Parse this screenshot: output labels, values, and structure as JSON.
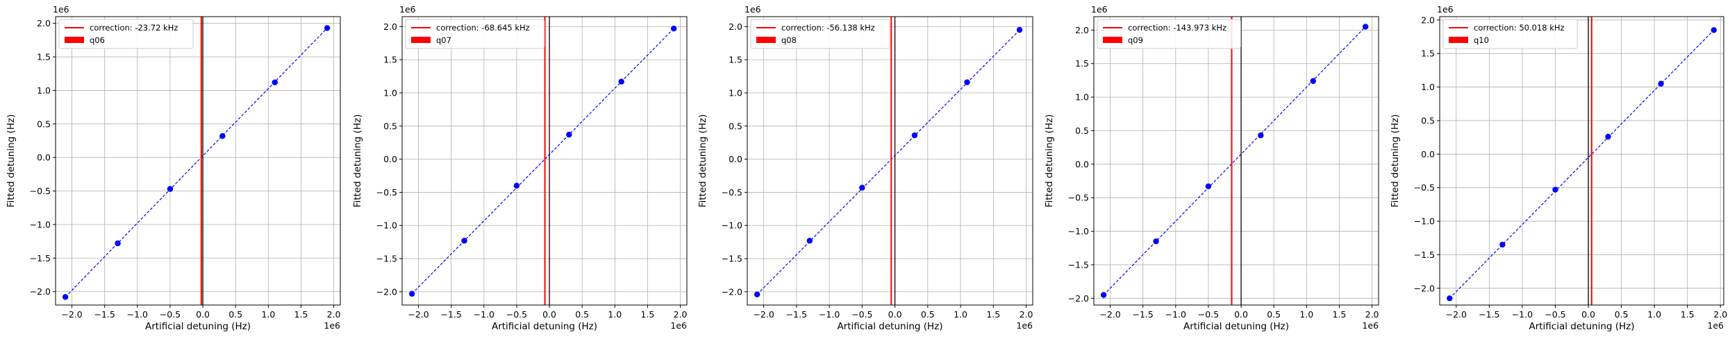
{
  "chart_data": [
    {
      "type": "scatter",
      "x_ticks": [
        "−2.0",
        "−1.5",
        "−1.0",
        "−0.5",
        "0.0",
        "0.5",
        "1.0",
        "1.5",
        "2.0"
      ],
      "y_ticks": [
        "−2.0",
        "−1.5",
        "−1.0",
        "−0.5",
        "0.0",
        "0.5",
        "1.0",
        "1.5",
        "2.0"
      ],
      "x_ticks_val": [
        -2.0,
        -1.5,
        -1.0,
        -0.5,
        0.0,
        0.5,
        1.0,
        1.5,
        2.0
      ],
      "y_ticks_val": [
        -2.0,
        -1.5,
        -1.0,
        -0.5,
        0.0,
        0.5,
        1.0,
        1.5,
        2.0
      ],
      "x_offset": "1e6",
      "y_offset": "1e6",
      "xlabel": "Artificial detuning (Hz)",
      "ylabel": "Fitted detuning (Hz)",
      "xlim": [
        -2.25,
        2.1
      ],
      "ylim": [
        -2.2,
        2.1
      ],
      "grid": true,
      "legend_loc": "upper-left",
      "series_name": "q06",
      "correction_label": "correction: -23.72 kHz",
      "correction_x": -0.02372,
      "zero_line_x": 0.0,
      "points_x": [
        -2.1,
        -1.3,
        -0.5,
        0.3,
        1.1,
        1.9
      ],
      "points_y": [
        -2.08,
        -1.28,
        -0.47,
        0.32,
        1.12,
        1.93
      ],
      "fit_y": [
        -2.08,
        1.93
      ],
      "colors": {
        "points": "#0000ff",
        "correction": "#ff0000",
        "zero": "#000000"
      }
    },
    {
      "type": "scatter",
      "x_ticks": [
        "−2.0",
        "−1.5",
        "−1.0",
        "−0.5",
        "0.0",
        "0.5",
        "1.0",
        "1.5",
        "2.0"
      ],
      "y_ticks": [
        "−2.0",
        "−1.5",
        "−1.0",
        "−0.5",
        "0.0",
        "0.5",
        "1.0",
        "1.5",
        "2.0"
      ],
      "x_ticks_val": [
        -2.0,
        -1.5,
        -1.0,
        -0.5,
        0.0,
        0.5,
        1.0,
        1.5,
        2.0
      ],
      "y_ticks_val": [
        -2.0,
        -1.5,
        -1.0,
        -0.5,
        0.0,
        0.5,
        1.0,
        1.5,
        2.0
      ],
      "x_offset": "1e6",
      "y_offset": "1e6",
      "xlabel": "Artificial detuning (Hz)",
      "ylabel": "Fitted detuning (Hz)",
      "xlim": [
        -2.25,
        2.1
      ],
      "ylim": [
        -2.2,
        2.15
      ],
      "grid": true,
      "legend_loc": "upper-left",
      "series_name": "q07",
      "correction_label": "correction: -68.645 kHz",
      "correction_x": -0.068645,
      "zero_line_x": 0.0,
      "points_x": [
        -2.1,
        -1.3,
        -0.5,
        0.3,
        1.1,
        1.9
      ],
      "points_y": [
        -2.03,
        -1.23,
        -0.4,
        0.37,
        1.17,
        1.97
      ],
      "fit_y": [
        -2.03,
        1.97
      ],
      "colors": {
        "points": "#0000ff",
        "correction": "#ff0000",
        "zero": "#000000"
      }
    },
    {
      "type": "scatter",
      "x_ticks": [
        "−2.0",
        "−1.5",
        "−1.0",
        "−0.5",
        "0.0",
        "0.5",
        "1.0",
        "1.5",
        "2.0"
      ],
      "y_ticks": [
        "−2.0",
        "−1.5",
        "−1.0",
        "−0.5",
        "0.0",
        "0.5",
        "1.0",
        "1.5",
        "2.0"
      ],
      "x_ticks_val": [
        -2.0,
        -1.5,
        -1.0,
        -0.5,
        0.0,
        0.5,
        1.0,
        1.5,
        2.0
      ],
      "y_ticks_val": [
        -2.0,
        -1.5,
        -1.0,
        -0.5,
        0.0,
        0.5,
        1.0,
        1.5,
        2.0
      ],
      "x_offset": "1e6",
      "y_offset": "1e6",
      "xlabel": "Artificial detuning (Hz)",
      "ylabel": "Fitted detuning (Hz)",
      "xlim": [
        -2.25,
        2.1
      ],
      "ylim": [
        -2.2,
        2.15
      ],
      "grid": true,
      "legend_loc": "upper-left",
      "series_name": "q08",
      "correction_label": "correction: -56.138 kHz",
      "correction_x": -0.056138,
      "zero_line_x": 0.0,
      "points_x": [
        -2.1,
        -1.3,
        -0.5,
        0.3,
        1.1,
        1.9
      ],
      "points_y": [
        -2.04,
        -1.23,
        -0.43,
        0.36,
        1.16,
        1.95
      ],
      "fit_y": [
        -2.04,
        1.95
      ],
      "colors": {
        "points": "#0000ff",
        "correction": "#ff0000",
        "zero": "#000000"
      }
    },
    {
      "type": "scatter",
      "x_ticks": [
        "−2.0",
        "−1.5",
        "−1.0",
        "−0.5",
        "0.0",
        "0.5",
        "1.0",
        "1.5",
        "2.0"
      ],
      "y_ticks": [
        "−2.0",
        "−1.5",
        "−1.0",
        "−0.5",
        "0.0",
        "0.5",
        "1.0",
        "1.5",
        "2.0"
      ],
      "x_ticks_val": [
        -2.0,
        -1.5,
        -1.0,
        -0.5,
        0.0,
        0.5,
        1.0,
        1.5,
        2.0
      ],
      "y_ticks_val": [
        -2.0,
        -1.5,
        -1.0,
        -0.5,
        0.0,
        0.5,
        1.0,
        1.5,
        2.0
      ],
      "x_offset": "1e6",
      "y_offset": "1e6",
      "xlabel": "Artificial detuning (Hz)",
      "ylabel": "Fitted detuning (Hz)",
      "xlim": [
        -2.25,
        2.1
      ],
      "ylim": [
        -2.1,
        2.2
      ],
      "grid": true,
      "legend_loc": "upper-left",
      "series_name": "q09",
      "correction_label": "correction: -143.973 kHz",
      "correction_x": -0.143973,
      "zero_line_x": 0.0,
      "points_x": [
        -2.1,
        -1.3,
        -0.5,
        0.3,
        1.1,
        1.9
      ],
      "points_y": [
        -1.95,
        -1.15,
        -0.33,
        0.43,
        1.24,
        2.05
      ],
      "fit_y": [
        -1.95,
        2.05
      ],
      "colors": {
        "points": "#0000ff",
        "correction": "#ff0000",
        "zero": "#000000"
      }
    },
    {
      "type": "scatter",
      "x_ticks": [
        "−2.0",
        "−1.5",
        "−1.0",
        "−0.5",
        "0.0",
        "0.5",
        "1.0",
        "1.5",
        "2.0"
      ],
      "y_ticks": [
        "−2.0",
        "−1.5",
        "−1.0",
        "−0.5",
        "0.0",
        "0.5",
        "1.0",
        "1.5",
        "2.0"
      ],
      "x_ticks_val": [
        -2.0,
        -1.5,
        -1.0,
        -0.5,
        0.0,
        0.5,
        1.0,
        1.5,
        2.0
      ],
      "y_ticks_val": [
        -2.0,
        -1.5,
        -1.0,
        -0.5,
        0.0,
        0.5,
        1.0,
        1.5,
        2.0
      ],
      "x_offset": "1e6",
      "y_offset": "1e6",
      "xlabel": "Artificial detuning (Hz)",
      "ylabel": "Fitted detuning (Hz)",
      "xlim": [
        -2.25,
        2.05
      ],
      "ylim": [
        -2.25,
        2.05
      ],
      "grid": true,
      "legend_loc": "upper-left",
      "series_name": "q10",
      "correction_label": "correction: 50.018 kHz",
      "correction_x": 0.050018,
      "zero_line_x": 0.0,
      "points_x": [
        -2.1,
        -1.3,
        -0.5,
        0.3,
        1.1,
        1.9
      ],
      "points_y": [
        -2.15,
        -1.35,
        -0.53,
        0.26,
        1.05,
        1.85
      ],
      "fit_y": [
        -2.15,
        1.85
      ],
      "colors": {
        "points": "#0000ff",
        "correction": "#ff0000",
        "zero": "#000000"
      }
    }
  ]
}
